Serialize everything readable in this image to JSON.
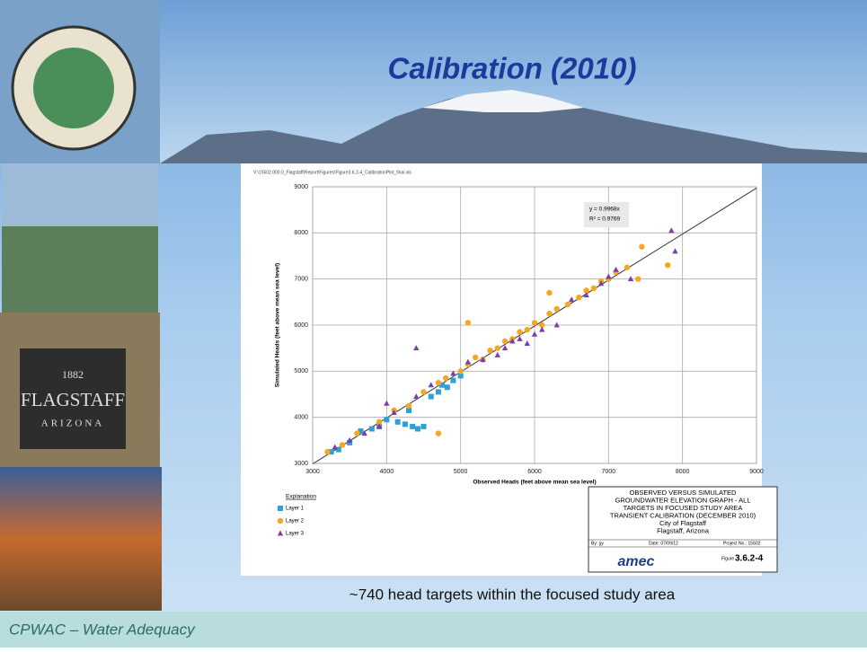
{
  "header": {
    "title": "Calibration (2010)"
  },
  "caption": "~740 head targets within the focused study area",
  "footer": "CPWAC – Water Adequacy",
  "chart_data": {
    "type": "scatter",
    "file_path": "V:\\15502.000.0_Flagstaff\\Report\\Figures\\Figure3.6.2-4_CalibrationPlot_final.xls",
    "xlabel": "Observed Heads (feet above mean sea level)",
    "ylabel": "Simulated Heads (feet above mean sea level)",
    "xlim": [
      3000,
      9000
    ],
    "ylim": [
      3000,
      9000
    ],
    "xticks": [
      3000,
      4000,
      5000,
      6000,
      7000,
      8000,
      9000
    ],
    "yticks": [
      3000,
      4000,
      5000,
      6000,
      7000,
      8000,
      9000
    ],
    "grid": true,
    "trendline": {
      "slope": 0.9968,
      "label": "y = 0.9968x",
      "r2_label": "R² = 0.9769",
      "color": "#333333"
    },
    "legend_title": "Explanation",
    "series": [
      {
        "name": "Layer 1",
        "color": "#2e9fd8",
        "marker": "square",
        "x": [
          3250,
          3350,
          3500,
          3650,
          3800,
          4000,
          4150,
          4250,
          4350,
          4420,
          4500,
          4600,
          4700,
          4750,
          4820,
          4900,
          5000,
          3900,
          4300
        ],
        "y": [
          3250,
          3300,
          3450,
          3700,
          3750,
          3950,
          3900,
          3850,
          3800,
          3750,
          3800,
          4450,
          4550,
          4700,
          4650,
          4800,
          4900,
          3800,
          4150
        ]
      },
      {
        "name": "Layer 2",
        "color": "#f5a623",
        "marker": "circle",
        "x": [
          3200,
          3400,
          3600,
          3900,
          4100,
          4300,
          4500,
          4700,
          4800,
          5000,
          5100,
          5200,
          5300,
          5400,
          5500,
          5600,
          5700,
          5800,
          5900,
          6000,
          6100,
          6200,
          6300,
          6450,
          6600,
          6700,
          6800,
          6900,
          7000,
          7100,
          7250,
          7450,
          7800,
          4700,
          5100,
          6200,
          7400
        ],
        "y": [
          3250,
          3400,
          3650,
          3900,
          4150,
          4250,
          4550,
          4750,
          4850,
          5000,
          5150,
          5300,
          5250,
          5450,
          5500,
          5650,
          5700,
          5850,
          5900,
          6050,
          6000,
          6250,
          6350,
          6450,
          6600,
          6750,
          6800,
          6950,
          7000,
          7150,
          7250,
          7700,
          7300,
          3650,
          6050,
          6700,
          7000
        ]
      },
      {
        "name": "Layer 3",
        "color": "#7b3fa8",
        "marker": "triangle",
        "x": [
          3300,
          3500,
          3700,
          3900,
          4000,
          4100,
          4400,
          4600,
          4900,
          5100,
          5300,
          5500,
          5600,
          5700,
          5800,
          5900,
          6000,
          6100,
          6300,
          6500,
          6700,
          6900,
          7000,
          7100,
          7300,
          7850,
          7900,
          4400
        ],
        "y": [
          3350,
          3500,
          3650,
          3800,
          4300,
          4100,
          4450,
          4700,
          4950,
          5200,
          5250,
          5350,
          5500,
          5650,
          5700,
          5600,
          5800,
          5900,
          6000,
          6550,
          6650,
          6900,
          7050,
          7200,
          7000,
          8050,
          7600,
          5500
        ]
      }
    ],
    "title_block": {
      "lines": [
        "OBSERVED VERSUS SIMULATED",
        "GROUNDWATER ELEVATION GRAPH - ALL",
        "TARGETS IN FOCUSED STUDY AREA",
        "TRANSIENT CALIBRATION (DECEMBER 2010)",
        "City of Flagstaff",
        "Flagstaff, Arizona"
      ],
      "by": "By: gy",
      "date": "Date: 07/09/12",
      "project": "Project No.: 15502",
      "logo": "amec",
      "figure_label": "Figure",
      "figure_number": "3.6.2-4"
    }
  }
}
